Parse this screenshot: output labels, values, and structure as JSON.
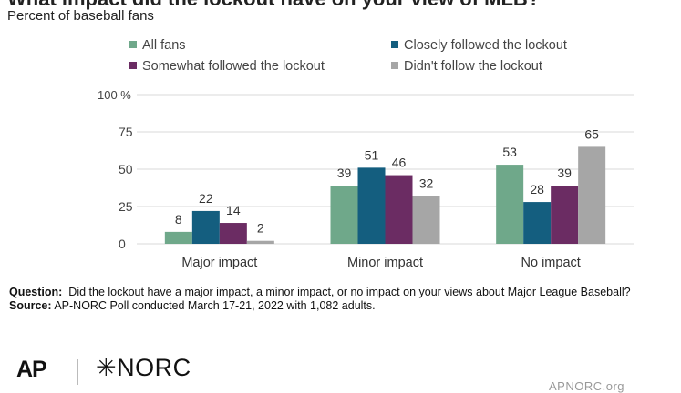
{
  "header": {
    "title": "What impact did the lockout have on your view of MLB?",
    "subtitle": "Percent of baseball fans"
  },
  "colors": {
    "all_fans": "#6fa88a",
    "closely": "#145e7f",
    "somewhat": "#6b2c63",
    "didnt": "#a6a6a6",
    "grid": "#d9d9d9",
    "axis_text": "#444444"
  },
  "chart_data": {
    "type": "bar",
    "title": "What impact did the lockout have on your view of MLB?",
    "subtitle": "Percent of baseball fans",
    "categories": [
      "Major impact",
      "Minor impact",
      "No impact"
    ],
    "series": [
      {
        "name": "All fans",
        "values": [
          8,
          39,
          53
        ]
      },
      {
        "name": "Closely followed the lockout",
        "values": [
          22,
          51,
          28
        ]
      },
      {
        "name": "Somewhat followed the lockout",
        "values": [
          14,
          46,
          39
        ]
      },
      {
        "name": "Didn't follow the lockout",
        "values": [
          2,
          32,
          65
        ]
      }
    ],
    "ylim": [
      0,
      100
    ],
    "yticks": [
      0,
      25,
      50,
      75,
      100
    ],
    "ytick_labels": [
      "0",
      "25",
      "50",
      "75",
      "100 %"
    ],
    "grid": true,
    "legend_position": "top"
  },
  "notes": {
    "question_label": "Question:",
    "question_text": "Did the lockout have a major impact, a minor impact, or no impact on your views about Major League Baseball?",
    "source_label": "Source:",
    "source_text": "AP-NORC Poll conducted March 17-21, 2022 with 1,082 adults."
  },
  "footer": {
    "ap_logo": "AP",
    "norc_logo": "NORC",
    "norc_mark": "✳",
    "site": "APNORC.org"
  }
}
